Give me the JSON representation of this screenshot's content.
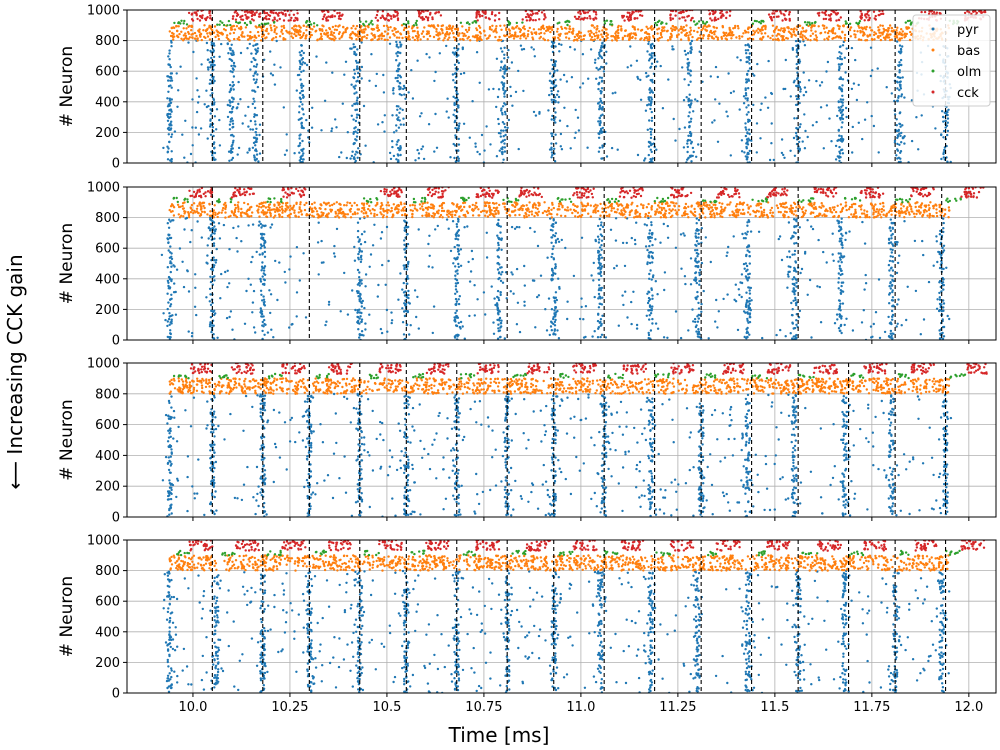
{
  "figure": {
    "side_label": "⟵ Increasing CCK gain",
    "xlabel": "Time [ms]"
  },
  "chart_data": [
    {
      "type": "scatter",
      "title": "",
      "xlabel": "",
      "ylabel": "# Neuron",
      "xlim": [
        9.83,
        12.07
      ],
      "ylim": [
        0,
        1000
      ],
      "xticks": [
        10.0,
        10.25,
        10.5,
        10.75,
        11.0,
        11.25,
        11.5,
        11.75,
        12.0
      ],
      "yticks": [
        0,
        200,
        400,
        600,
        800,
        1000
      ],
      "x_ticklabels_visible": false,
      "grid": true,
      "legend": {
        "position": "top-right",
        "entries": [
          "pyr",
          "bas",
          "olm",
          "cck"
        ]
      },
      "series": [
        {
          "name": "pyr",
          "color": "#1f77b4",
          "neuron_range": [
            0,
            800
          ]
        },
        {
          "name": "bas",
          "color": "#ff7f0e",
          "neuron_range": [
            800,
            900
          ]
        },
        {
          "name": "olm",
          "color": "#2ca02c",
          "neuron_range": [
            900,
            930
          ]
        },
        {
          "name": "cck",
          "color": "#d62728",
          "neuron_range": [
            930,
            1000
          ]
        }
      ],
      "cycle_markers": [
        10.05,
        10.18,
        10.3,
        10.43,
        10.55,
        10.68,
        10.81,
        10.93,
        11.06,
        11.19,
        11.31,
        11.44,
        11.56,
        11.69,
        11.81,
        11.94
      ],
      "pyr_bursts": [
        9.94,
        10.05,
        10.1,
        10.16,
        10.28,
        10.42,
        10.53,
        10.68,
        10.8,
        10.93,
        11.05,
        11.18,
        11.28,
        11.43,
        11.56,
        11.67,
        11.82,
        11.94
      ]
    },
    {
      "type": "scatter",
      "title": "",
      "xlabel": "",
      "ylabel": "# Neuron",
      "xlim": [
        9.83,
        12.07
      ],
      "ylim": [
        0,
        1000
      ],
      "xticks": [
        10.0,
        10.25,
        10.5,
        10.75,
        11.0,
        11.25,
        11.5,
        11.75,
        12.0
      ],
      "yticks": [
        0,
        200,
        400,
        600,
        800,
        1000
      ],
      "x_ticklabels_visible": false,
      "grid": true,
      "series": [
        {
          "name": "pyr",
          "color": "#1f77b4",
          "neuron_range": [
            0,
            800
          ]
        },
        {
          "name": "bas",
          "color": "#ff7f0e",
          "neuron_range": [
            800,
            900
          ]
        },
        {
          "name": "olm",
          "color": "#2ca02c",
          "neuron_range": [
            900,
            930
          ]
        },
        {
          "name": "cck",
          "color": "#d62728",
          "neuron_range": [
            930,
            1000
          ]
        }
      ],
      "cycle_markers": [
        10.05,
        10.3,
        10.55,
        10.81,
        11.06,
        11.31,
        11.56,
        11.81,
        11.93
      ],
      "pyr_bursts": [
        9.94,
        10.05,
        10.18,
        10.43,
        10.55,
        10.68,
        10.79,
        10.93,
        11.05,
        11.18,
        11.3,
        11.43,
        11.55,
        11.67,
        11.8,
        11.93
      ]
    },
    {
      "type": "scatter",
      "title": "",
      "xlabel": "",
      "ylabel": "# Neuron",
      "xlim": [
        9.83,
        12.07
      ],
      "ylim": [
        0,
        1000
      ],
      "xticks": [
        10.0,
        10.25,
        10.5,
        10.75,
        11.0,
        11.25,
        11.5,
        11.75,
        12.0
      ],
      "yticks": [
        0,
        200,
        400,
        600,
        800,
        1000
      ],
      "x_ticklabels_visible": false,
      "grid": true,
      "series": [
        {
          "name": "pyr",
          "color": "#1f77b4",
          "neuron_range": [
            0,
            800
          ]
        },
        {
          "name": "bas",
          "color": "#ff7f0e",
          "neuron_range": [
            800,
            900
          ]
        },
        {
          "name": "olm",
          "color": "#2ca02c",
          "neuron_range": [
            900,
            930
          ]
        },
        {
          "name": "cck",
          "color": "#d62728",
          "neuron_range": [
            930,
            1000
          ]
        }
      ],
      "cycle_markers": [
        10.05,
        10.18,
        10.3,
        10.43,
        10.55,
        10.68,
        10.81,
        10.93,
        11.06,
        11.19,
        11.31,
        11.44,
        11.56,
        11.69,
        11.81,
        11.94
      ],
      "pyr_bursts": [
        9.94,
        10.05,
        10.18,
        10.3,
        10.43,
        10.55,
        10.68,
        10.81,
        10.93,
        11.06,
        11.18,
        11.31,
        11.43,
        11.55,
        11.68,
        11.8,
        11.94
      ]
    },
    {
      "type": "scatter",
      "title": "",
      "xlabel": "Time [ms]",
      "ylabel": "# Neuron",
      "xlim": [
        9.83,
        12.07
      ],
      "ylim": [
        0,
        1000
      ],
      "xticks": [
        10.0,
        10.25,
        10.5,
        10.75,
        11.0,
        11.25,
        11.5,
        11.75,
        12.0
      ],
      "xticklabels": [
        "10.0",
        "10.25",
        "10.5",
        "10.75",
        "11.0",
        "11.25",
        "11.5",
        "11.75",
        "12.0"
      ],
      "yticks": [
        0,
        200,
        400,
        600,
        800,
        1000
      ],
      "x_ticklabels_visible": true,
      "grid": true,
      "series": [
        {
          "name": "pyr",
          "color": "#1f77b4",
          "neuron_range": [
            0,
            800
          ]
        },
        {
          "name": "bas",
          "color": "#ff7f0e",
          "neuron_range": [
            800,
            900
          ]
        },
        {
          "name": "olm",
          "color": "#2ca02c",
          "neuron_range": [
            900,
            930
          ]
        },
        {
          "name": "cck",
          "color": "#d62728",
          "neuron_range": [
            930,
            1000
          ]
        }
      ],
      "cycle_markers": [
        10.05,
        10.18,
        10.3,
        10.43,
        10.55,
        10.68,
        10.81,
        10.93,
        11.06,
        11.19,
        11.31,
        11.44,
        11.56,
        11.69,
        11.81,
        11.94
      ],
      "pyr_bursts": [
        9.94,
        10.06,
        10.18,
        10.3,
        10.43,
        10.55,
        10.68,
        10.81,
        10.93,
        11.05,
        11.18,
        11.3,
        11.43,
        11.56,
        11.68,
        11.81,
        11.93
      ]
    }
  ]
}
